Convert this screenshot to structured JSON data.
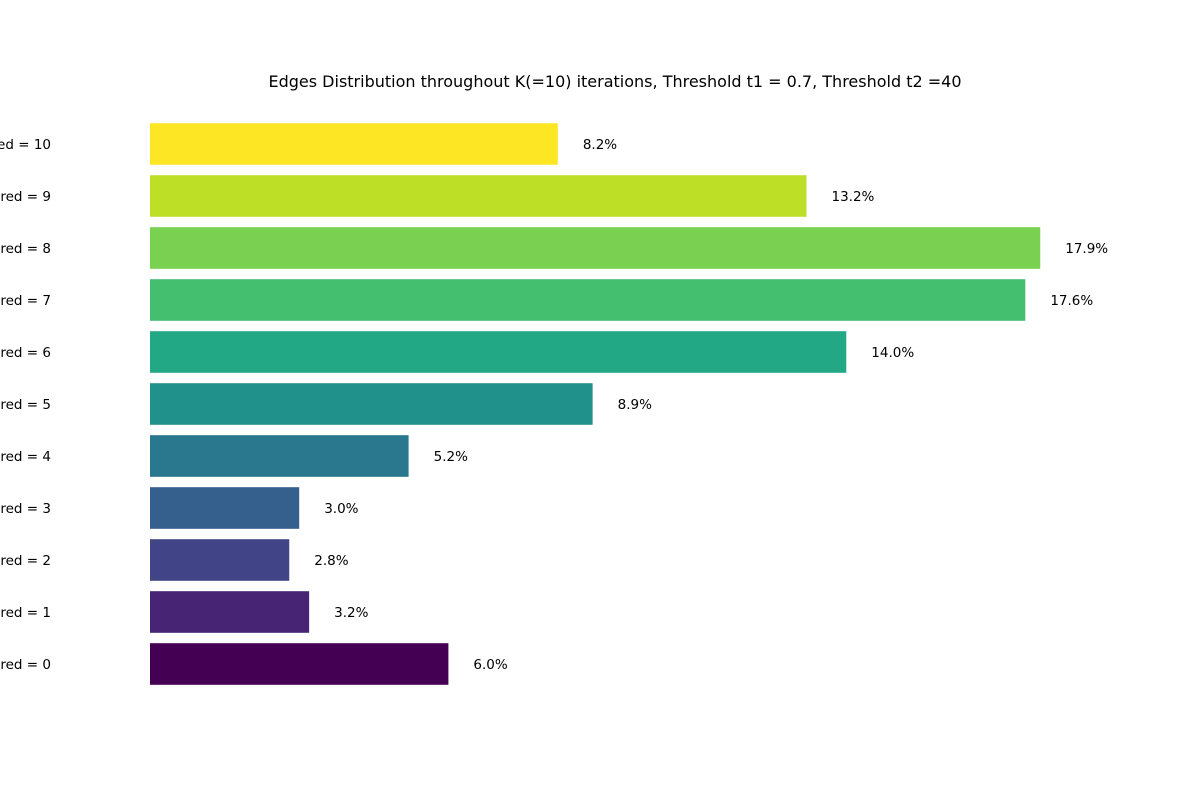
{
  "chart_data": {
    "type": "bar",
    "orientation": "horizontal",
    "title": "Edges Distribution throughout K(=10) iterations, Threshold t1 = 0.7, Threshold t2 =40",
    "xlabel": "",
    "ylabel": "",
    "grid": false,
    "axes_visible": false,
    "categories": [
      "red = 0",
      "red = 1",
      "red = 2",
      "red = 3",
      "red = 4",
      "red = 5",
      "red = 6",
      "red = 7",
      "red = 8",
      "red = 9",
      "ed = 10"
    ],
    "values": [
      6.0,
      3.2,
      2.8,
      3.0,
      5.2,
      8.9,
      14.0,
      17.6,
      17.9,
      13.2,
      8.2
    ],
    "value_labels": [
      "6.0%",
      "3.2%",
      "2.8%",
      "3.0%",
      "5.2%",
      "8.9%",
      "14.0%",
      "17.6%",
      "17.9%",
      "13.2%",
      "8.2%"
    ],
    "colors": [
      "#440154",
      "#482475",
      "#414487",
      "#355f8d",
      "#2a788e",
      "#21918c",
      "#22a884",
      "#44bf70",
      "#7ad151",
      "#bddf26",
      "#fde725"
    ],
    "xlim": [
      0,
      18.8
    ]
  }
}
